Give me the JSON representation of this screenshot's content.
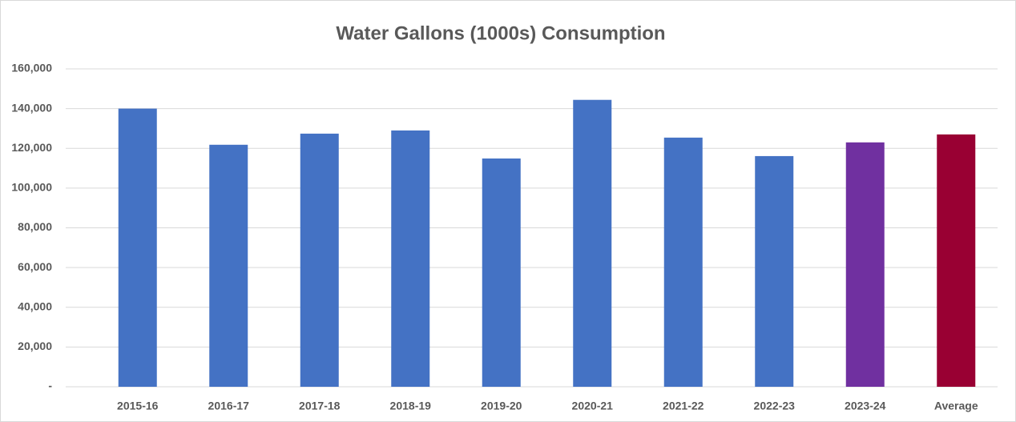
{
  "chart_data": {
    "type": "bar",
    "title": "Water Gallons (1000s) Consumption",
    "categories": [
      "2015-16",
      "2016-17",
      "2017-18",
      "2018-19",
      "2019-20",
      "2020-21",
      "2021-22",
      "2022-23",
      "2023-24",
      "Average"
    ],
    "values": [
      140000,
      121800,
      127400,
      129000,
      114900,
      144400,
      125400,
      116100,
      123000,
      127000
    ],
    "colors": [
      "#4472c4",
      "#4472c4",
      "#4472c4",
      "#4472c4",
      "#4472c4",
      "#4472c4",
      "#4472c4",
      "#4472c4",
      "#7030a0",
      "#990033"
    ],
    "ylim": [
      0,
      160000
    ],
    "yticks": [
      {
        "value": 0,
        "label": "-"
      },
      {
        "value": 20000,
        "label": "20,000"
      },
      {
        "value": 40000,
        "label": "40,000"
      },
      {
        "value": 60000,
        "label": "60,000"
      },
      {
        "value": 80000,
        "label": "80,000"
      },
      {
        "value": 100000,
        "label": "100,000"
      },
      {
        "value": 120000,
        "label": "120,000"
      },
      {
        "value": 140000,
        "label": "140,000"
      },
      {
        "value": 160000,
        "label": "160,000"
      }
    ],
    "grid": true
  }
}
